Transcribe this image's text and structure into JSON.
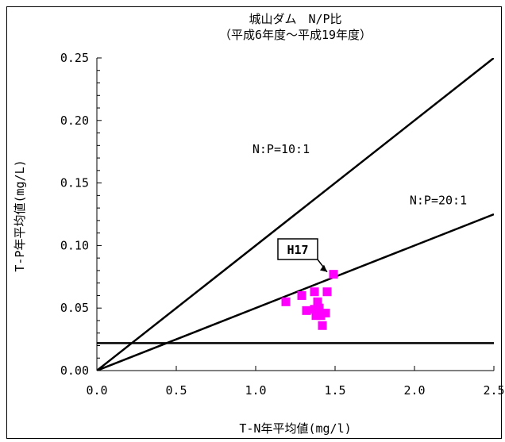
{
  "chart_data": {
    "type": "scatter",
    "title": "城山ダム　N/P比",
    "subtitle": "（平成6年度～平成19年度）",
    "xlabel": "T-N年平均値(mg/l)",
    "ylabel": "T-P年平均値(mg/L)",
    "xlim": [
      0.0,
      2.5
    ],
    "ylim": [
      0.0,
      0.25
    ],
    "x_ticks": [
      "0.0",
      "0.5",
      "1.0",
      "1.5",
      "2.0",
      "2.5"
    ],
    "y_ticks": [
      "0.00",
      "0.05",
      "0.10",
      "0.15",
      "0.20",
      "0.25"
    ],
    "grid": false,
    "marker_color": "#ff00ff",
    "points": [
      {
        "x": 1.19,
        "y": 0.055
      },
      {
        "x": 1.29,
        "y": 0.06
      },
      {
        "x": 1.32,
        "y": 0.048
      },
      {
        "x": 1.37,
        "y": 0.063
      },
      {
        "x": 1.37,
        "y": 0.049
      },
      {
        "x": 1.38,
        "y": 0.044
      },
      {
        "x": 1.39,
        "y": 0.055
      },
      {
        "x": 1.4,
        "y": 0.05
      },
      {
        "x": 1.41,
        "y": 0.044
      },
      {
        "x": 1.42,
        "y": 0.036
      },
      {
        "x": 1.44,
        "y": 0.046
      },
      {
        "x": 1.45,
        "y": 0.063
      },
      {
        "x": 1.49,
        "y": 0.077
      }
    ],
    "reference_lines": [
      {
        "label": "N:P=10:1",
        "slope": 0.1
      },
      {
        "label": "N:P=20:1",
        "slope": 0.05
      },
      {
        "label": "",
        "y": 0.022
      }
    ],
    "annotations": [
      {
        "text": "H17",
        "x": 1.49,
        "y": 0.077
      }
    ]
  }
}
